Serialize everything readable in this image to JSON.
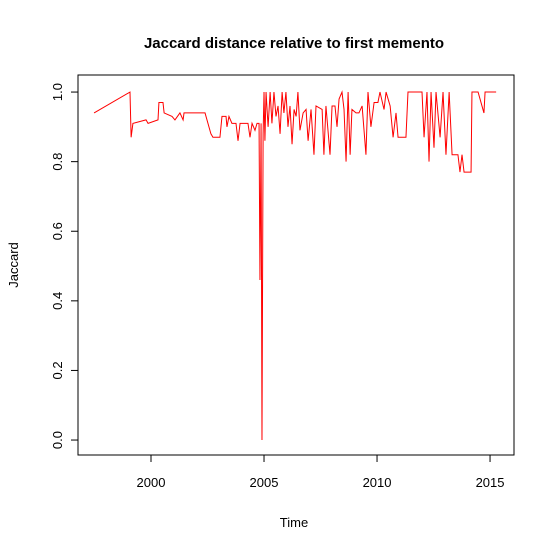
{
  "chart_data": {
    "type": "line",
    "title": "Jaccard distance relative to first memento",
    "x_label": "Time",
    "y_label": "Jaccard",
    "x": [
      1997.48,
      1999.07,
      1999.12,
      1999.2,
      1999.78,
      1999.87,
      2000.31,
      2000.35,
      2000.53,
      2000.58,
      2000.93,
      2001.06,
      2001.28,
      2001.42,
      2001.46,
      2002.39,
      2002.52,
      2002.65,
      2002.74,
      2003.05,
      2003.14,
      2003.32,
      2003.36,
      2003.45,
      2003.58,
      2003.76,
      2003.85,
      2003.94,
      2004.29,
      2004.38,
      2004.47,
      2004.6,
      2004.69,
      2004.78,
      2004.82,
      2004.87,
      2004.91,
      2004.96,
      2005.0,
      2005.04,
      2005.09,
      2005.18,
      2005.27,
      2005.35,
      2005.44,
      2005.53,
      2005.62,
      2005.71,
      2005.8,
      2005.88,
      2005.97,
      2006.06,
      2006.15,
      2006.24,
      2006.33,
      2006.42,
      2006.5,
      2006.59,
      2006.73,
      2006.86,
      2006.95,
      2007.08,
      2007.21,
      2007.3,
      2007.57,
      2007.65,
      2007.74,
      2007.92,
      2008.01,
      2008.14,
      2008.23,
      2008.32,
      2008.45,
      2008.54,
      2008.63,
      2008.72,
      2008.81,
      2008.89,
      2009.07,
      2009.2,
      2009.34,
      2009.51,
      2009.6,
      2009.73,
      2009.87,
      2010.04,
      2010.13,
      2010.31,
      2010.4,
      2010.58,
      2010.71,
      2010.84,
      2010.93,
      2011.28,
      2011.37,
      2011.99,
      2012.08,
      2012.21,
      2012.3,
      2012.39,
      2012.52,
      2012.61,
      2012.79,
      2012.92,
      2013.05,
      2013.19,
      2013.32,
      2013.58,
      2013.67,
      2013.76,
      2013.85,
      2014.16,
      2014.2,
      2014.47,
      2014.73,
      2014.78,
      2015.27
    ],
    "series": [
      {
        "color": "#ff0000",
        "values": [
          0.94,
          1.0,
          0.87,
          0.91,
          0.92,
          0.91,
          0.92,
          0.97,
          0.97,
          0.94,
          0.93,
          0.92,
          0.94,
          0.92,
          0.94,
          0.94,
          0.91,
          0.88,
          0.87,
          0.87,
          0.93,
          0.93,
          0.9,
          0.93,
          0.91,
          0.91,
          0.86,
          0.91,
          0.91,
          0.87,
          0.91,
          0.89,
          0.91,
          0.91,
          0.46,
          0.91,
          0.0,
          0.88,
          1.0,
          0.86,
          1.0,
          0.9,
          1.0,
          0.91,
          1.0,
          0.93,
          0.96,
          0.88,
          1.0,
          0.94,
          1.0,
          0.9,
          0.96,
          0.85,
          0.95,
          0.93,
          1.0,
          0.89,
          0.94,
          0.95,
          0.86,
          0.95,
          0.82,
          0.96,
          0.95,
          0.82,
          0.96,
          0.82,
          0.96,
          0.96,
          0.9,
          0.98,
          1.0,
          0.95,
          0.8,
          1.0,
          0.82,
          0.95,
          0.94,
          0.94,
          0.96,
          0.82,
          1.0,
          0.9,
          0.97,
          0.97,
          1.0,
          0.95,
          1.0,
          0.96,
          0.87,
          0.94,
          0.87,
          0.87,
          1.0,
          1.0,
          0.87,
          1.0,
          0.8,
          1.0,
          0.84,
          1.0,
          0.87,
          1.0,
          0.82,
          1.0,
          0.82,
          0.82,
          0.77,
          0.82,
          0.77,
          0.77,
          1.0,
          1.0,
          0.94,
          1.0,
          1.0
        ]
      }
    ],
    "xlim": [
      1996.77,
      2016.06
    ],
    "xticks": [
      2000,
      2005,
      2010,
      2015
    ],
    "ylim": [
      -0.043,
      1.049
    ],
    "yticks": [
      {
        "value": 0,
        "label": "0.0"
      },
      {
        "value": 0.2,
        "label": "0.2"
      },
      {
        "value": 0.4,
        "label": "0.4"
      },
      {
        "value": 0.6,
        "label": "0.6"
      },
      {
        "value": 0.8,
        "label": "0.8"
      },
      {
        "value": 1,
        "label": "1.0"
      }
    ]
  }
}
